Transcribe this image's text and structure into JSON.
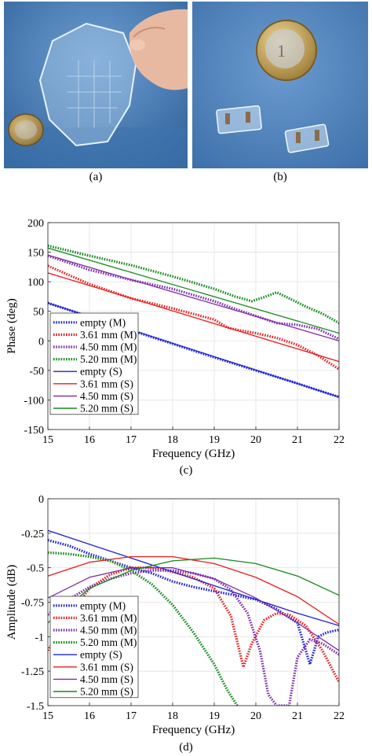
{
  "captions": {
    "a": "(a)",
    "b": "(b)",
    "c": "(c)",
    "d": "(d)"
  },
  "colors": {
    "blue": "#1f1fd6",
    "red": "#e81c1c",
    "purple": "#7b2da8",
    "green": "#138a1c",
    "photo_bg": "#4b7fb7"
  },
  "photo_a": {
    "description_icons": [
      "glass-wafer",
      "euro-coin",
      "hand"
    ]
  },
  "photo_b": {
    "description_icons": [
      "euro-coin",
      "glass-sample"
    ]
  },
  "chart_data": [
    {
      "id": "c",
      "type": "line",
      "xlabel": "Frequency (GHz)",
      "ylabel": "Phase (deg)",
      "xlim": [
        15,
        22
      ],
      "ylim": [
        -150,
        200
      ],
      "xticks": [
        15,
        16,
        17,
        18,
        19,
        20,
        21,
        22
      ],
      "yticks": [
        -150,
        -100,
        -50,
        0,
        50,
        100,
        150,
        200
      ],
      "grid": true,
      "legend_position": "left-middle",
      "series": [
        {
          "name": "empty (M)",
          "color": "#1f1fd6",
          "style": "dotted",
          "x": [
            15,
            16,
            17,
            18,
            19,
            20,
            21,
            22
          ],
          "y": [
            64,
            41,
            18,
            -5,
            -28,
            -50,
            -72,
            -95
          ]
        },
        {
          "name": "3.61 mm (M)",
          "color": "#e81c1c",
          "style": "dotted",
          "x": [
            15,
            16,
            17,
            18,
            19,
            19.3,
            19.6,
            20,
            20.5,
            21,
            21.5,
            22
          ],
          "y": [
            127,
            96,
            72,
            55,
            36,
            23,
            18,
            13,
            5,
            -7,
            -25,
            -48
          ]
        },
        {
          "name": "4.50 mm (M)",
          "color": "#7b2da8",
          "style": "dotted",
          "x": [
            15,
            16,
            17,
            18,
            19,
            19.5,
            20,
            20.5,
            21,
            21.5,
            22
          ],
          "y": [
            144,
            120,
            103,
            88,
            67,
            54,
            42,
            30,
            27,
            20,
            3
          ]
        },
        {
          "name": "5.20 mm (M)",
          "color": "#138a1c",
          "style": "dotted",
          "x": [
            15,
            16,
            17,
            18,
            19,
            19.5,
            19.9,
            20.2,
            20.5,
            20.8,
            21.2,
            21.6,
            22
          ],
          "y": [
            161,
            144,
            128,
            109,
            88,
            75,
            67,
            74,
            82,
            72,
            58,
            46,
            30
          ]
        },
        {
          "name": "empty (S)",
          "color": "#1f1fd6",
          "style": "solid",
          "x": [
            15,
            22
          ],
          "y": [
            64,
            -95
          ]
        },
        {
          "name": "3.61 mm (S)",
          "color": "#e81c1c",
          "style": "solid",
          "x": [
            15,
            22
          ],
          "y": [
            115,
            -35
          ]
        },
        {
          "name": "4.50 mm (S)",
          "color": "#7b2da8",
          "style": "solid",
          "x": [
            15,
            22
          ],
          "y": [
            145,
            0
          ]
        },
        {
          "name": "5.20 mm (S)",
          "color": "#138a1c",
          "style": "solid",
          "x": [
            15,
            22
          ],
          "y": [
            157,
            13
          ]
        }
      ]
    },
    {
      "id": "d",
      "type": "line",
      "xlabel": "Frequency (GHz)",
      "ylabel": "Amplitude (dB)",
      "xlim": [
        15,
        22
      ],
      "ylim": [
        -1.5,
        0
      ],
      "xticks": [
        15,
        16,
        17,
        18,
        19,
        20,
        21,
        22
      ],
      "yticks": [
        -1.5,
        -1.25,
        -1,
        -0.75,
        -0.5,
        -0.25,
        0
      ],
      "ytick_labels": [
        "-1.5",
        "-1.25",
        "-1",
        "-0.75",
        "-0.5",
        "-0.25",
        "0"
      ],
      "grid": true,
      "legend_position": "bottom-left",
      "series": [
        {
          "name": "empty (M)",
          "color": "#1f1fd6",
          "style": "dotted",
          "x": [
            15,
            15.5,
            16,
            16.5,
            17,
            17.5,
            18,
            18.5,
            19,
            19.5,
            20,
            20.5,
            21,
            21.3,
            21.5,
            21.7,
            22
          ],
          "y": [
            -0.3,
            -0.34,
            -0.4,
            -0.45,
            -0.5,
            -0.54,
            -0.6,
            -0.64,
            -0.67,
            -0.7,
            -0.73,
            -0.8,
            -0.9,
            -1.2,
            -1.0,
            -0.97,
            -0.95
          ]
        },
        {
          "name": "3.61 mm (M)",
          "color": "#e81c1c",
          "style": "dotted",
          "x": [
            15,
            15.5,
            16,
            16.5,
            17,
            17.5,
            18,
            18.5,
            19,
            19.4,
            19.7,
            19.9,
            20.2,
            20.5,
            20.8,
            21.2,
            21.6,
            22
          ],
          "y": [
            -1.1,
            -0.85,
            -0.65,
            -0.55,
            -0.5,
            -0.5,
            -0.53,
            -0.57,
            -0.65,
            -0.85,
            -1.22,
            -1.05,
            -0.88,
            -0.83,
            -0.84,
            -0.92,
            -1.1,
            -1.33
          ]
        },
        {
          "name": "4.50 mm (M)",
          "color": "#7b2da8",
          "style": "dotted",
          "x": [
            15,
            15.5,
            16,
            16.5,
            17,
            17.5,
            18,
            18.5,
            19,
            19.4,
            19.8,
            20.1,
            20.3,
            20.5,
            20.8,
            21,
            21.3,
            21.6,
            22
          ],
          "y": [
            -0.84,
            -0.73,
            -0.64,
            -0.58,
            -0.54,
            -0.52,
            -0.52,
            -0.54,
            -0.58,
            -0.66,
            -0.83,
            -1.1,
            -1.42,
            -1.5,
            -1.5,
            -1.15,
            -1.02,
            -1.05,
            -1.13
          ]
        },
        {
          "name": "5.20 mm (M)",
          "color": "#138a1c",
          "style": "dotted",
          "x": [
            15,
            15.5,
            16,
            16.5,
            17,
            17.5,
            18,
            18.5,
            19,
            19.3,
            19.55
          ],
          "y": [
            -0.39,
            -0.4,
            -0.42,
            -0.45,
            -0.52,
            -0.62,
            -0.77,
            -0.97,
            -1.2,
            -1.38,
            -1.5
          ]
        },
        {
          "name": "empty (S)",
          "color": "#1f1fd6",
          "style": "solid",
          "x": [
            15,
            16,
            17,
            18,
            19,
            20,
            21,
            22
          ],
          "y": [
            -0.23,
            -0.33,
            -0.43,
            -0.53,
            -0.63,
            -0.73,
            -0.83,
            -0.92
          ]
        },
        {
          "name": "3.61 mm (S)",
          "color": "#e81c1c",
          "style": "solid",
          "x": [
            15,
            16,
            17,
            18,
            19,
            20,
            21,
            22
          ],
          "y": [
            -0.56,
            -0.46,
            -0.42,
            -0.42,
            -0.47,
            -0.57,
            -0.71,
            -0.91
          ]
        },
        {
          "name": "4.50 mm (S)",
          "color": "#7b2da8",
          "style": "solid",
          "x": [
            15,
            16,
            17,
            18,
            19,
            20,
            21,
            22
          ],
          "y": [
            -0.72,
            -0.57,
            -0.5,
            -0.5,
            -0.58,
            -0.72,
            -0.9,
            -1.1
          ]
        },
        {
          "name": "5.20 mm (S)",
          "color": "#138a1c",
          "style": "solid",
          "x": [
            15,
            16,
            17,
            18,
            19,
            20,
            21,
            22
          ],
          "y": [
            -0.9,
            -0.65,
            -0.52,
            -0.45,
            -0.43,
            -0.47,
            -0.56,
            -0.7
          ]
        }
      ]
    }
  ]
}
